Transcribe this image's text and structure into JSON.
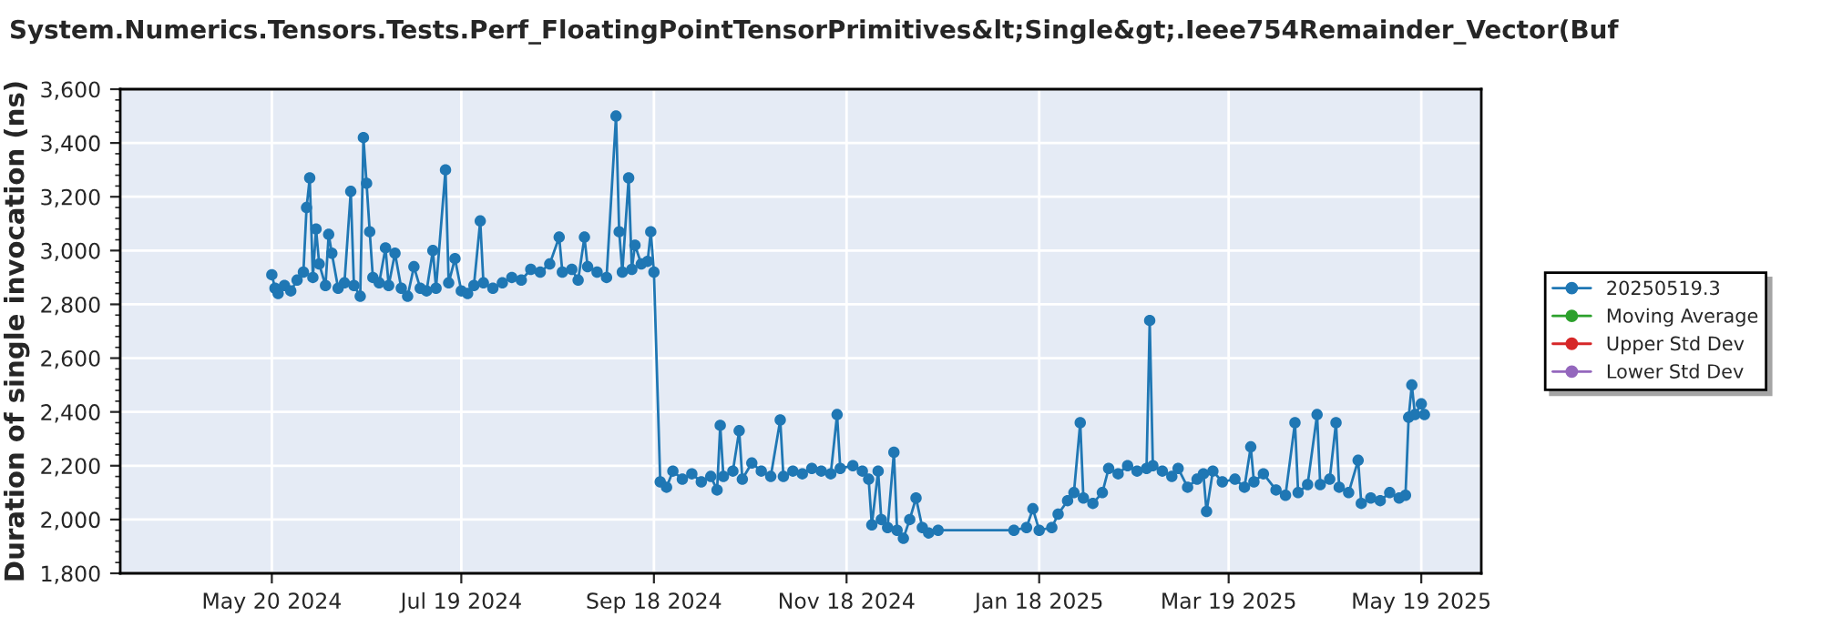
{
  "chart_data": {
    "type": "line",
    "title": "System.Numerics.Tensors.Tests.Perf_FloatingPointTensorPrimitives&lt;Single&gt;.Ieee754Remainder_Vector(Buf",
    "ylabel": "Duration of single invocation (ns)",
    "xlim": [
      "2024-04-02",
      "2025-06-07"
    ],
    "xticks": [
      {
        "value": "2024-05-20",
        "label": "May 20 2024"
      },
      {
        "value": "2024-07-19",
        "label": "Jul 19 2024"
      },
      {
        "value": "2024-09-18",
        "label": "Sep 18 2024"
      },
      {
        "value": "2024-11-18",
        "label": "Nov 18 2024"
      },
      {
        "value": "2025-01-18",
        "label": "Jan 18 2025"
      },
      {
        "value": "2025-03-19",
        "label": "Mar 19 2025"
      },
      {
        "value": "2025-05-19",
        "label": "May 19 2025"
      }
    ],
    "ylim": [
      1800,
      3600
    ],
    "yticks": [
      {
        "value": 1800,
        "label": "1,800"
      },
      {
        "value": 2000,
        "label": "2,000"
      },
      {
        "value": 2200,
        "label": "2,200"
      },
      {
        "value": 2400,
        "label": "2,400"
      },
      {
        "value": 2600,
        "label": "2,600"
      },
      {
        "value": 2800,
        "label": "2,800"
      },
      {
        "value": 3000,
        "label": "3,000"
      },
      {
        "value": 3200,
        "label": "3,200"
      },
      {
        "value": 3400,
        "label": "3,400"
      },
      {
        "value": 3600,
        "label": "3,600"
      }
    ],
    "grid": true,
    "legend": "right",
    "marker": "circle",
    "line_style": "solid",
    "series": [
      {
        "name": "20250519.3",
        "color": "#1f77b4",
        "x": [
          "2024-05-20",
          "2024-05-21",
          "2024-05-22",
          "2024-05-24",
          "2024-05-26",
          "2024-05-28",
          "2024-05-30",
          "2024-05-31",
          "2024-06-01",
          "2024-06-02",
          "2024-06-03",
          "2024-06-04",
          "2024-06-06",
          "2024-06-07",
          "2024-06-08",
          "2024-06-10",
          "2024-06-12",
          "2024-06-14",
          "2024-06-15",
          "2024-06-17",
          "2024-06-18",
          "2024-06-19",
          "2024-06-20",
          "2024-06-21",
          "2024-06-23",
          "2024-06-25",
          "2024-06-26",
          "2024-06-28",
          "2024-06-30",
          "2024-07-02",
          "2024-07-04",
          "2024-07-06",
          "2024-07-08",
          "2024-07-10",
          "2024-07-11",
          "2024-07-14",
          "2024-07-15",
          "2024-07-17",
          "2024-07-19",
          "2024-07-21",
          "2024-07-23",
          "2024-07-25",
          "2024-07-26",
          "2024-07-29",
          "2024-08-01",
          "2024-08-04",
          "2024-08-07",
          "2024-08-10",
          "2024-08-13",
          "2024-08-16",
          "2024-08-19",
          "2024-08-20",
          "2024-08-23",
          "2024-08-25",
          "2024-08-27",
          "2024-08-28",
          "2024-08-31",
          "2024-09-03",
          "2024-09-06",
          "2024-09-07",
          "2024-09-08",
          "2024-09-10",
          "2024-09-11",
          "2024-09-12",
          "2024-09-14",
          "2024-09-16",
          "2024-09-17",
          "2024-09-18",
          "2024-09-20",
          "2024-09-22",
          "2024-09-24",
          "2024-09-27",
          "2024-09-30",
          "2024-10-03",
          "2024-10-06",
          "2024-10-08",
          "2024-10-09",
          "2024-10-10",
          "2024-10-13",
          "2024-10-15",
          "2024-10-16",
          "2024-10-19",
          "2024-10-22",
          "2024-10-25",
          "2024-10-28",
          "2024-10-29",
          "2024-11-01",
          "2024-11-04",
          "2024-11-07",
          "2024-11-10",
          "2024-11-13",
          "2024-11-15",
          "2024-11-16",
          "2024-11-20",
          "2024-11-23",
          "2024-11-25",
          "2024-11-26",
          "2024-11-28",
          "2024-11-29",
          "2024-12-01",
          "2024-12-03",
          "2024-12-04",
          "2024-12-06",
          "2024-12-08",
          "2024-12-10",
          "2024-12-12",
          "2024-12-14",
          "2024-12-17",
          "2025-01-10",
          "2025-01-14",
          "2025-01-16",
          "2025-01-18",
          "2025-01-22",
          "2025-01-24",
          "2025-01-27",
          "2025-01-29",
          "2025-01-31",
          "2025-02-01",
          "2025-02-04",
          "2025-02-07",
          "2025-02-09",
          "2025-02-12",
          "2025-02-15",
          "2025-02-18",
          "2025-02-21",
          "2025-02-22",
          "2025-02-23",
          "2025-02-26",
          "2025-03-01",
          "2025-03-03",
          "2025-03-06",
          "2025-03-09",
          "2025-03-11",
          "2025-03-12",
          "2025-03-14",
          "2025-03-17",
          "2025-03-21",
          "2025-03-24",
          "2025-03-26",
          "2025-03-27",
          "2025-03-30",
          "2025-04-03",
          "2025-04-06",
          "2025-04-09",
          "2025-04-10",
          "2025-04-13",
          "2025-04-16",
          "2025-04-17",
          "2025-04-20",
          "2025-04-22",
          "2025-04-23",
          "2025-04-26",
          "2025-04-29",
          "2025-04-30",
          "2025-05-03",
          "2025-05-06",
          "2025-05-09",
          "2025-05-12",
          "2025-05-14",
          "2025-05-15",
          "2025-05-16",
          "2025-05-17",
          "2025-05-19",
          "2025-05-20"
        ],
        "values": [
          2910,
          2860,
          2840,
          2870,
          2850,
          2890,
          2920,
          3160,
          3270,
          2900,
          3080,
          2950,
          2870,
          3060,
          2990,
          2860,
          2880,
          3220,
          2870,
          2830,
          3420,
          3250,
          3070,
          2900,
          2880,
          3010,
          2870,
          2990,
          2860,
          2830,
          2940,
          2860,
          2850,
          3000,
          2860,
          3300,
          2880,
          2970,
          2850,
          2840,
          2870,
          3110,
          2880,
          2860,
          2880,
          2900,
          2890,
          2930,
          2920,
          2950,
          3050,
          2920,
          2930,
          2890,
          3050,
          2940,
          2920,
          2900,
          3500,
          3070,
          2920,
          3270,
          2930,
          3020,
          2950,
          2960,
          3070,
          2920,
          2140,
          2120,
          2180,
          2150,
          2170,
          2140,
          2160,
          2110,
          2350,
          2160,
          2180,
          2330,
          2150,
          2210,
          2180,
          2160,
          2370,
          2160,
          2180,
          2170,
          2190,
          2180,
          2170,
          2390,
          2190,
          2200,
          2180,
          2150,
          1980,
          2180,
          2000,
          1970,
          2250,
          1960,
          1930,
          2000,
          2080,
          1970,
          1950,
          1960,
          1960,
          1970,
          2040,
          1960,
          1970,
          2020,
          2070,
          2100,
          2360,
          2080,
          2060,
          2100,
          2190,
          2170,
          2200,
          2180,
          2190,
          2740,
          2200,
          2180,
          2160,
          2190,
          2120,
          2150,
          2170,
          2030,
          2180,
          2140,
          2150,
          2120,
          2270,
          2140,
          2170,
          2110,
          2090,
          2360,
          2100,
          2130,
          2390,
          2130,
          2150,
          2360,
          2120,
          2100,
          2220,
          2060,
          2080,
          2070,
          2100,
          2080,
          2090,
          2380,
          2500,
          2390,
          2430,
          2390
        ]
      },
      {
        "name": "Moving Average",
        "color": "#2ca02c"
      },
      {
        "name": "Upper Std Dev",
        "color": "#d62728"
      },
      {
        "name": "Lower Std Dev",
        "color": "#9467bd"
      }
    ]
  }
}
